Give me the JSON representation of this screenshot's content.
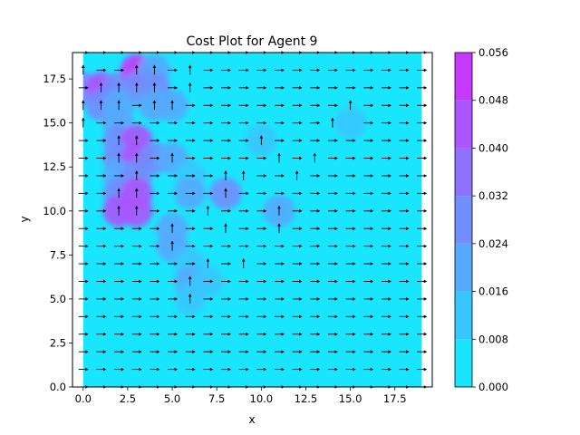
{
  "chart_data": {
    "type": "heatmap",
    "subtype": "filled-contour-with-quiver",
    "title": "Cost Plot for Agent 9",
    "xlabel": "x",
    "ylabel": "y",
    "xlim": [
      -0.6,
      19.6
    ],
    "ylim": [
      0,
      19
    ],
    "x_ticks": [
      0,
      2.5,
      5,
      7.5,
      10,
      12.5,
      15,
      17.5
    ],
    "x_tick_labels": [
      "0.0",
      "2.5",
      "5.0",
      "7.5",
      "10.0",
      "12.5",
      "15.0",
      "17.5"
    ],
    "y_ticks": [
      0,
      2.5,
      5,
      7.5,
      10,
      12.5,
      15,
      17.5
    ],
    "y_tick_labels": [
      "0.0",
      "2.5",
      "5.0",
      "7.5",
      "10.0",
      "12.5",
      "15.0",
      "17.5"
    ],
    "grid": false,
    "colorbar": {
      "levels": [
        0.0,
        0.008,
        0.016,
        0.024,
        0.032,
        0.04,
        0.048,
        0.056
      ],
      "tick_labels": [
        "0.000",
        "0.008",
        "0.016",
        "0.024",
        "0.032",
        "0.040",
        "0.048",
        "0.056"
      ],
      "colors": [
        "#1ae5ff",
        "#38c6ff",
        "#55aaff",
        "#718eff",
        "#8e71ff",
        "#aa55ff",
        "#c639ff",
        "#e31cff"
      ],
      "colormap": "cool"
    },
    "grid_size": [
      20,
      20
    ],
    "cost_high_cells": [
      {
        "x": 0,
        "y": 17,
        "v": 0.03
      },
      {
        "x": 1,
        "y": 17,
        "v": 0.04
      },
      {
        "x": 2,
        "y": 17,
        "v": 0.03
      },
      {
        "x": 3,
        "y": 18,
        "v": 0.05
      },
      {
        "x": 4,
        "y": 18,
        "v": 0.02
      },
      {
        "x": 3,
        "y": 17,
        "v": 0.03
      },
      {
        "x": 4,
        "y": 17,
        "v": 0.03
      },
      {
        "x": 1,
        "y": 16,
        "v": 0.03
      },
      {
        "x": 2,
        "y": 16,
        "v": 0.02
      },
      {
        "x": 4,
        "y": 16,
        "v": 0.02
      },
      {
        "x": 5,
        "y": 16,
        "v": 0.02
      },
      {
        "x": 2,
        "y": 15,
        "v": 0.02
      },
      {
        "x": 2,
        "y": 14,
        "v": 0.03
      },
      {
        "x": 3,
        "y": 14,
        "v": 0.04
      },
      {
        "x": 2,
        "y": 13,
        "v": 0.03
      },
      {
        "x": 3,
        "y": 13,
        "v": 0.045
      },
      {
        "x": 4,
        "y": 13,
        "v": 0.03
      },
      {
        "x": 5,
        "y": 13,
        "v": 0.02
      },
      {
        "x": 2,
        "y": 12,
        "v": 0.02
      },
      {
        "x": 3,
        "y": 12,
        "v": 0.03
      },
      {
        "x": 6,
        "y": 12,
        "v": 0.015
      },
      {
        "x": 2,
        "y": 11,
        "v": 0.03
      },
      {
        "x": 3,
        "y": 11,
        "v": 0.04
      },
      {
        "x": 8,
        "y": 11,
        "v": 0.025
      },
      {
        "x": 2,
        "y": 10,
        "v": 0.04
      },
      {
        "x": 3,
        "y": 10,
        "v": 0.045
      },
      {
        "x": 6,
        "y": 11,
        "v": 0.02
      },
      {
        "x": 11,
        "y": 10,
        "v": 0.02
      },
      {
        "x": 5,
        "y": 9,
        "v": 0.02
      },
      {
        "x": 5,
        "y": 8,
        "v": 0.02
      },
      {
        "x": 6,
        "y": 7,
        "v": 0.015
      },
      {
        "x": 6,
        "y": 6,
        "v": 0.02
      },
      {
        "x": 7,
        "y": 6,
        "v": 0.015
      },
      {
        "x": 6,
        "y": 5,
        "v": 0.015
      },
      {
        "x": 10,
        "y": 14,
        "v": 0.012
      },
      {
        "x": 15,
        "y": 15,
        "v": 0.015
      }
    ],
    "arrows_up_cells": [
      [
        0,
        18
      ],
      [
        3,
        18
      ],
      [
        4,
        18
      ],
      [
        6,
        18
      ],
      [
        1,
        17
      ],
      [
        2,
        17
      ],
      [
        3,
        17
      ],
      [
        4,
        17
      ],
      [
        6,
        17
      ],
      [
        0,
        16
      ],
      [
        1,
        16
      ],
      [
        2,
        16
      ],
      [
        4,
        16
      ],
      [
        5,
        16
      ],
      [
        15,
        16
      ],
      [
        0,
        15
      ],
      [
        14,
        15
      ],
      [
        15,
        15
      ],
      [
        2,
        14
      ],
      [
        3,
        14
      ],
      [
        10,
        14
      ],
      [
        2,
        13
      ],
      [
        3,
        13
      ],
      [
        5,
        13
      ],
      [
        11,
        13
      ],
      [
        13,
        13
      ],
      [
        3,
        12
      ],
      [
        8,
        12
      ],
      [
        9,
        12
      ],
      [
        12,
        12
      ],
      [
        2,
        11
      ],
      [
        3,
        11
      ],
      [
        8,
        11
      ],
      [
        2,
        10
      ],
      [
        3,
        10
      ],
      [
        7,
        10
      ],
      [
        11,
        10
      ],
      [
        5,
        9
      ],
      [
        8,
        9
      ],
      [
        11,
        9
      ],
      [
        5,
        8
      ],
      [
        7,
        7
      ],
      [
        9,
        7
      ],
      [
        6,
        6
      ],
      [
        6,
        5
      ]
    ],
    "arrows_omitted_cells": [
      [
        15,
        15
      ]
    ],
    "default_arrow_direction": "right"
  }
}
